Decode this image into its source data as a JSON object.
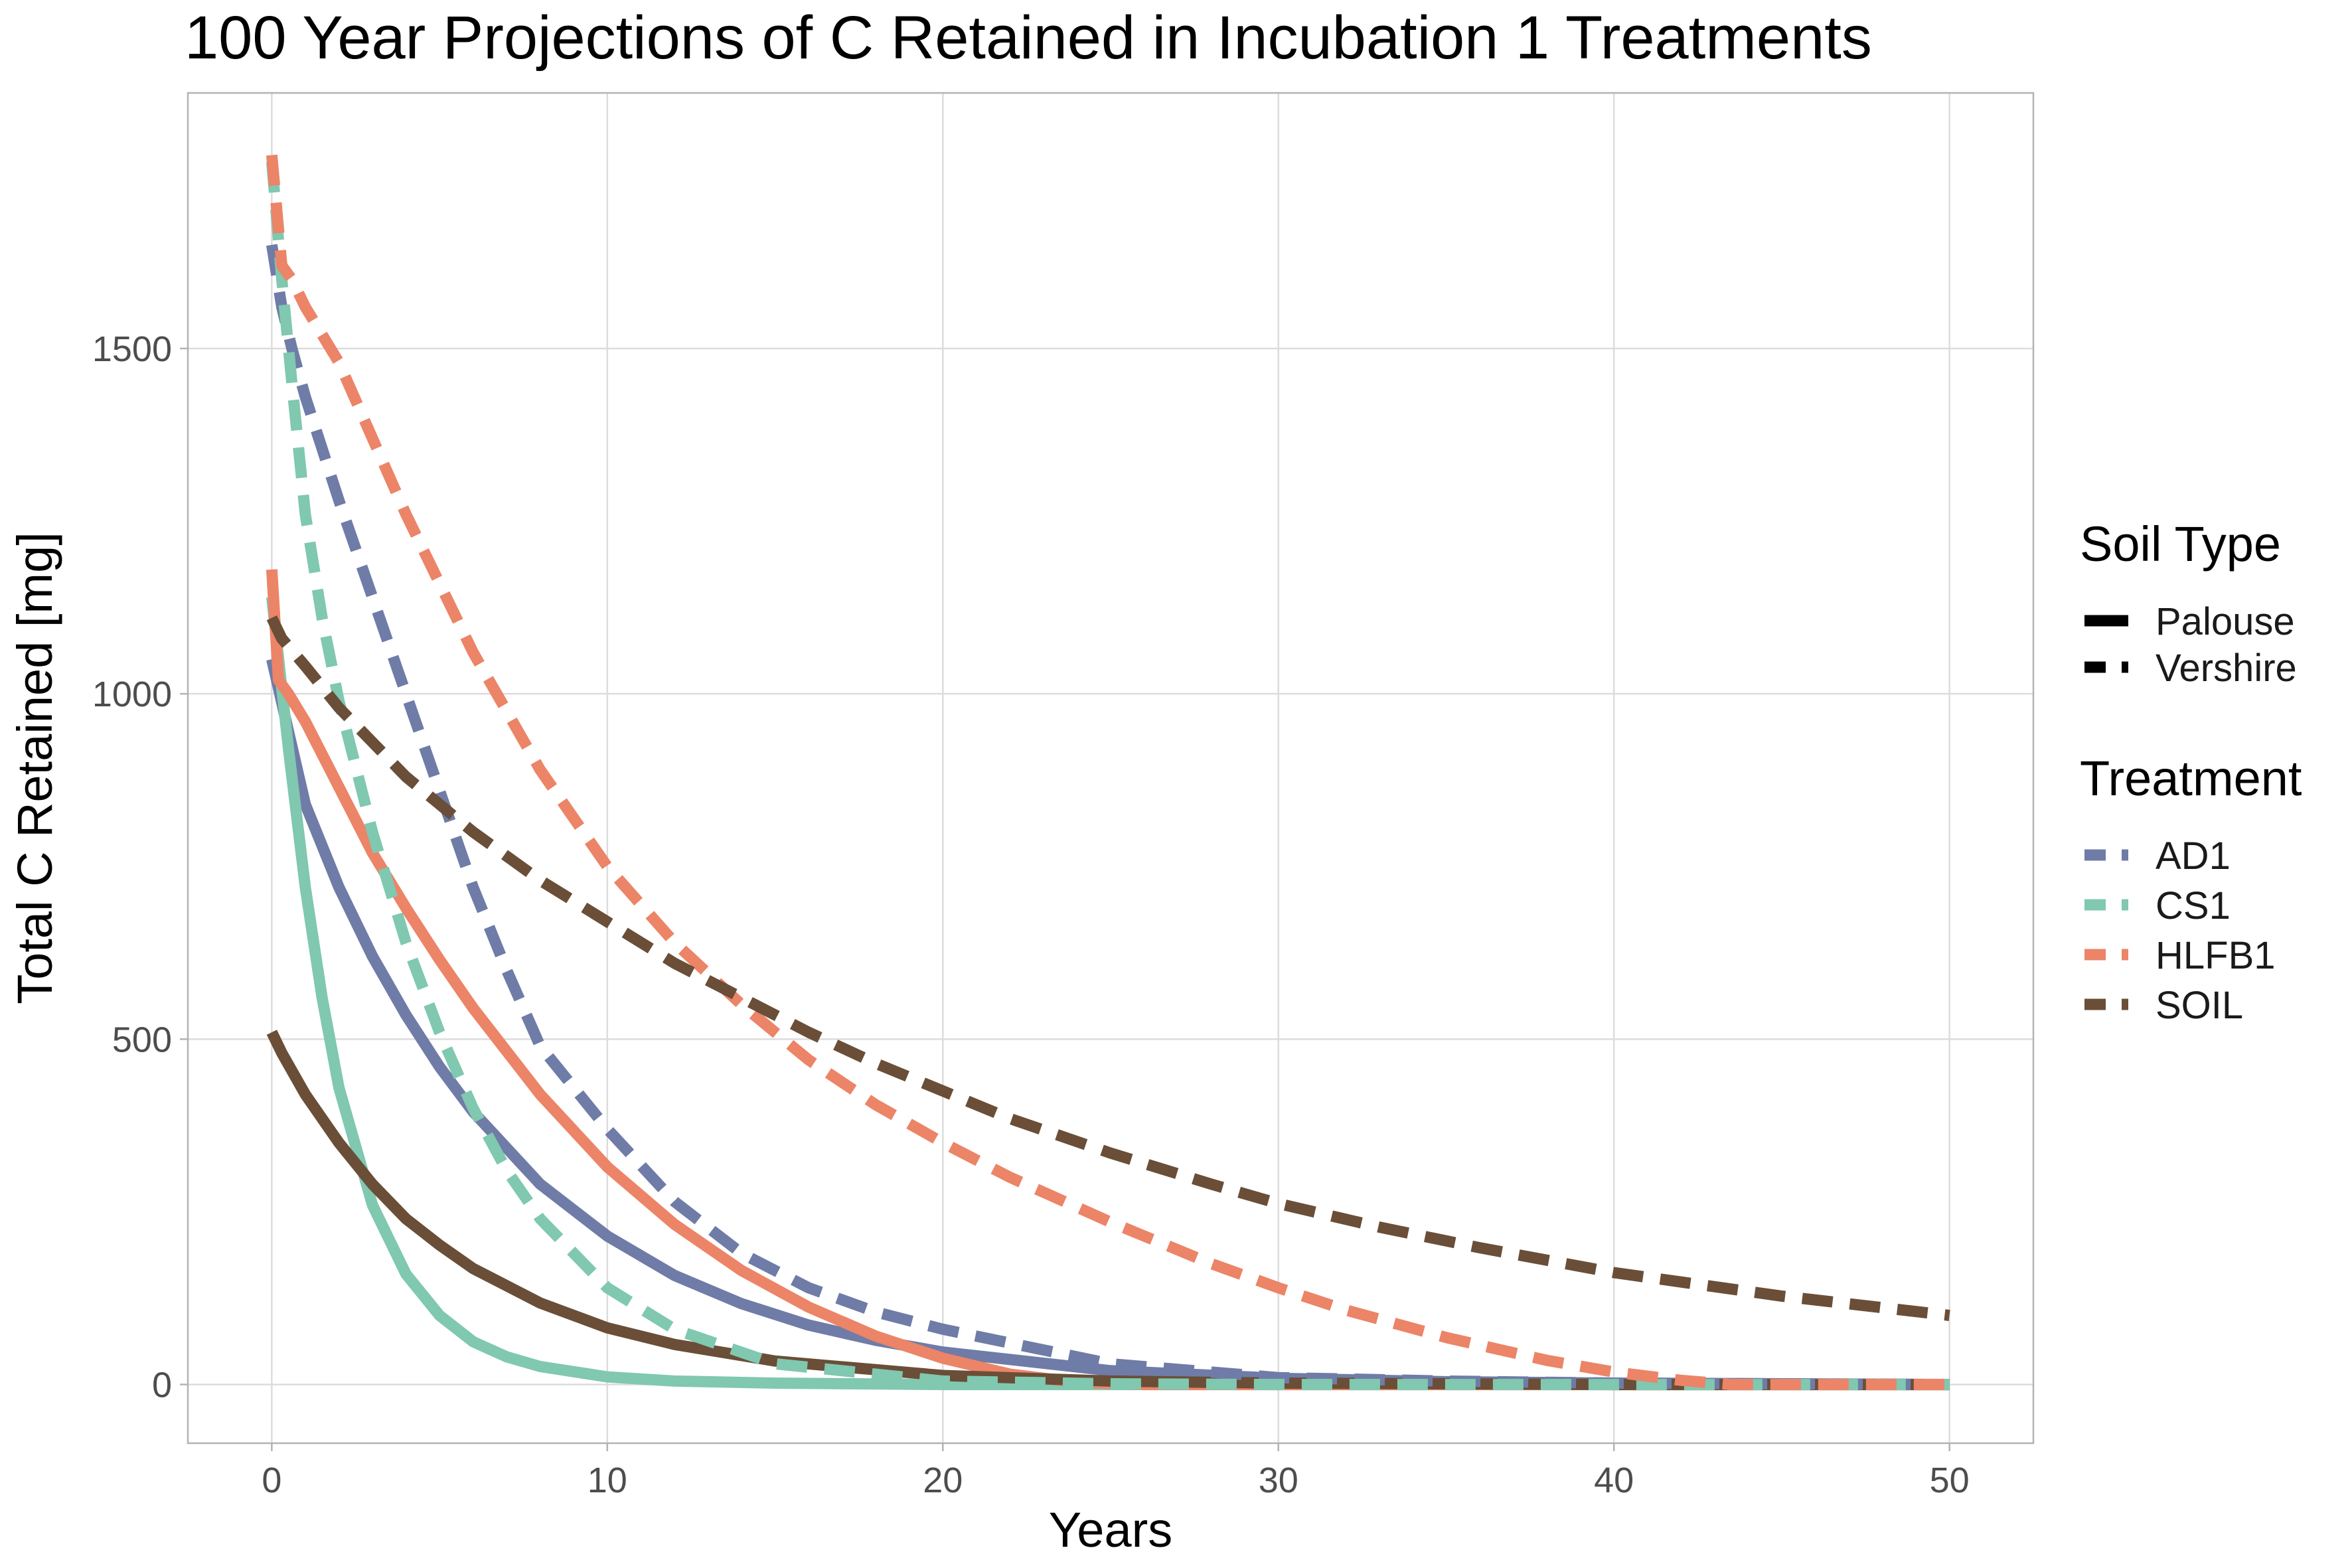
{
  "chart_data": {
    "type": "line",
    "title": "100 Year Projections of C Retained in Incubation 1 Treatments",
    "xlabel": "Years",
    "ylabel": "Total C Retained [mg]",
    "xlim": [
      -2.5,
      52.5
    ],
    "ylim": [
      -85,
      1870
    ],
    "x_ticks": [
      0,
      10,
      20,
      30,
      40,
      50
    ],
    "y_ticks": [
      0,
      500,
      1000,
      1500
    ],
    "x_tick_labels": [
      "0",
      "10",
      "20",
      "30",
      "40",
      "50"
    ],
    "y_tick_labels": [
      "0",
      "500",
      "1000",
      "1500"
    ],
    "grid": true,
    "legend_position": "right",
    "legends": [
      {
        "title": "Soil Type",
        "type": "linetype",
        "entries": [
          {
            "label": "Palouse",
            "linetype": "solid"
          },
          {
            "label": "Vershire",
            "linetype": "dashed"
          }
        ]
      },
      {
        "title": "Treatment",
        "type": "color",
        "entries": [
          {
            "label": "AD1",
            "color": "#6f7ca7"
          },
          {
            "label": "CS1",
            "color": "#80c8b0"
          },
          {
            "label": "HLFB1",
            "color": "#ec8467"
          },
          {
            "label": "SOIL",
            "color": "#6a4e37"
          }
        ]
      }
    ],
    "series": [
      {
        "name": "AD1",
        "soil": "Palouse",
        "linetype": "solid",
        "color": "#6f7ca7",
        "x": [
          0,
          1,
          2,
          3,
          4,
          5,
          6,
          8,
          10,
          12,
          14,
          16,
          18,
          20,
          25,
          30,
          35,
          40,
          45,
          50
        ],
        "y": [
          1050,
          840,
          720,
          620,
          535,
          460,
          395,
          290,
          215,
          158,
          117,
          86,
          64,
          47,
          20,
          9,
          4,
          2,
          1,
          0
        ]
      },
      {
        "name": "CS1",
        "soil": "Palouse",
        "linetype": "solid",
        "color": "#80c8b0",
        "x": [
          0,
          0.5,
          1,
          1.5,
          2,
          3,
          4,
          5,
          6,
          7,
          8,
          10,
          12,
          15,
          20,
          30,
          40,
          50
        ],
        "y": [
          1140,
          920,
          720,
          560,
          430,
          260,
          160,
          100,
          62,
          40,
          26,
          11,
          5,
          2,
          0,
          0,
          0,
          0
        ]
      },
      {
        "name": "HLFB1",
        "soil": "Palouse",
        "linetype": "solid",
        "color": "#ec8467",
        "x": [
          0,
          0.2,
          0.5,
          1,
          2,
          3,
          4,
          5,
          6,
          8,
          10,
          12,
          14,
          16,
          18,
          20,
          22,
          24,
          26,
          30,
          40,
          50
        ],
        "y": [
          1180,
          1020,
          1000,
          960,
          865,
          770,
          690,
          615,
          545,
          420,
          315,
          232,
          165,
          112,
          70,
          38,
          15,
          3,
          0,
          0,
          0,
          0
        ]
      },
      {
        "name": "SOIL",
        "soil": "Palouse",
        "linetype": "solid",
        "color": "#6a4e37",
        "x": [
          0,
          0.3,
          1,
          2,
          3,
          4,
          5,
          6,
          8,
          10,
          12,
          15,
          20,
          25,
          30,
          35,
          40,
          50
        ],
        "y": [
          510,
          480,
          420,
          350,
          290,
          240,
          202,
          168,
          118,
          82,
          58,
          34,
          13,
          5,
          2,
          1,
          0,
          0
        ]
      },
      {
        "name": "AD1",
        "soil": "Vershire",
        "linetype": "dashed",
        "color": "#6f7ca7",
        "x": [
          0,
          0.3,
          0.6,
          1,
          2,
          3,
          4,
          5,
          6,
          7,
          8,
          10,
          12,
          14,
          16,
          18,
          20,
          25,
          30,
          35,
          40,
          50
        ],
        "y": [
          1650,
          1560,
          1500,
          1430,
          1280,
          1140,
          1000,
          860,
          720,
          600,
          490,
          370,
          265,
          190,
          140,
          105,
          80,
          30,
          10,
          5,
          2,
          0
        ]
      },
      {
        "name": "CS1",
        "soil": "Vershire",
        "linetype": "dashed",
        "color": "#80c8b0",
        "x": [
          0,
          0.3,
          0.6,
          1,
          1.5,
          2,
          3,
          4,
          5,
          6,
          7,
          8,
          10,
          12,
          15,
          20,
          25,
          30,
          50
        ],
        "y": [
          1770,
          1600,
          1450,
          1260,
          1110,
          990,
          800,
          640,
          510,
          400,
          310,
          240,
          140,
          80,
          30,
          5,
          1,
          0,
          0
        ]
      },
      {
        "name": "HLFB1",
        "soil": "Vershire",
        "linetype": "dashed",
        "color": "#ec8467",
        "x": [
          0,
          0.3,
          0.6,
          1,
          2,
          4,
          6,
          8,
          10,
          12,
          14,
          16,
          18,
          20,
          22,
          25,
          28,
          30,
          32,
          35,
          38,
          40,
          42,
          43.5,
          50
        ],
        "y": [
          1780,
          1620,
          1600,
          1560,
          1480,
          1260,
          1060,
          890,
          750,
          640,
          550,
          470,
          405,
          350,
          300,
          235,
          175,
          140,
          108,
          68,
          35,
          18,
          6,
          0,
          0
        ]
      },
      {
        "name": "SOIL",
        "soil": "Vershire",
        "linetype": "dashed",
        "color": "#6a4e37",
        "x": [
          0,
          0.3,
          1,
          2,
          3,
          4,
          5,
          6,
          8,
          10,
          12,
          14,
          16,
          18,
          20,
          22,
          25,
          28,
          30,
          33,
          36,
          40,
          45,
          50
        ],
        "y": [
          1110,
          1080,
          1040,
          980,
          930,
          880,
          840,
          800,
          730,
          670,
          610,
          560,
          510,
          465,
          425,
          385,
          335,
          290,
          262,
          228,
          198,
          162,
          128,
          100
        ]
      }
    ]
  }
}
